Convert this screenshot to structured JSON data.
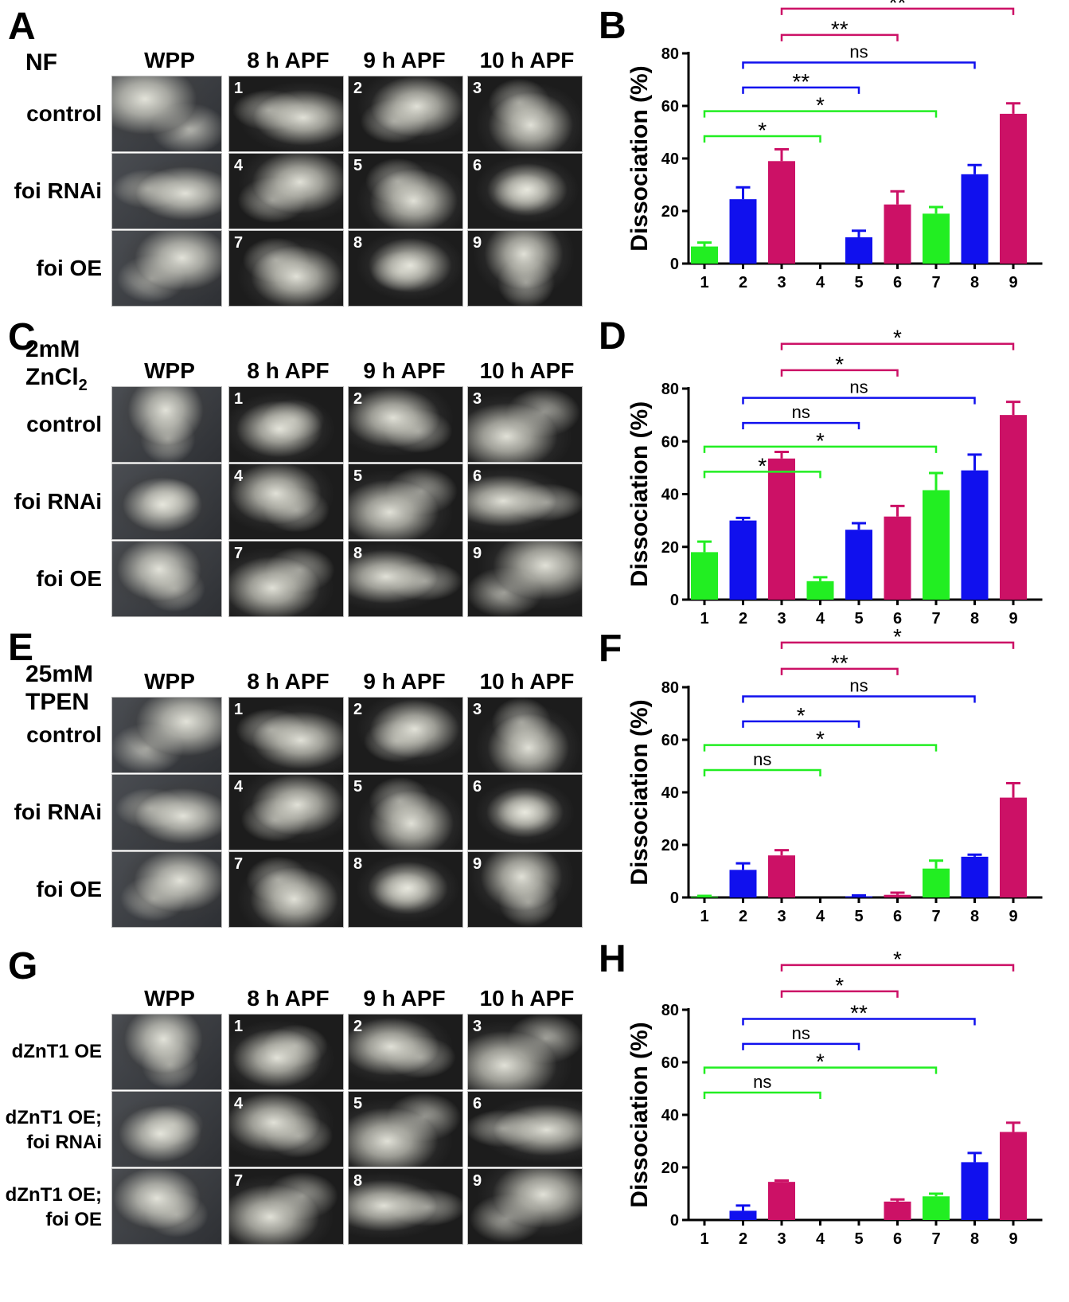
{
  "figure": {
    "column_headers": [
      "WPP",
      "8 h APF",
      "9 h APF",
      "10 h APF"
    ],
    "panels": [
      {
        "letter": "A",
        "condition": [
          "NF"
        ],
        "rows": [
          [
            "control"
          ],
          [
            "foi RNAi"
          ],
          [
            "foi OE"
          ]
        ]
      },
      {
        "letter": "C",
        "condition": [
          "2mM",
          "ZnCl",
          "2"
        ],
        "rows": [
          [
            "control"
          ],
          [
            "foi RNAi"
          ],
          [
            "foi OE"
          ]
        ]
      },
      {
        "letter": "E",
        "condition": [
          "25mM",
          "TPEN"
        ],
        "rows": [
          [
            "control"
          ],
          [
            "foi RNAi"
          ],
          [
            "foi OE"
          ]
        ]
      },
      {
        "letter": "G",
        "condition": [],
        "rows": [
          [
            "dZnT1 OE"
          ],
          [
            "dZnT1 OE;",
            "foi RNAi"
          ],
          [
            "dZnT1 OE;",
            "foi OE"
          ]
        ]
      }
    ],
    "image_numbers": [
      "1",
      "2",
      "3",
      "4",
      "5",
      "6",
      "7",
      "8",
      "9"
    ]
  },
  "colors": {
    "green": "#22ee22",
    "blue": "#1010ee",
    "magenta": "#cc1166",
    "bg_dark": "#1c1c1c"
  },
  "chart_data": [
    {
      "letter": "B",
      "type": "bar",
      "ylabel": "Dissociation (%)",
      "ylim": [
        0,
        80
      ],
      "yticks": [
        "0",
        "20",
        "40",
        "60",
        "80"
      ],
      "categories": [
        "1",
        "2",
        "3",
        "4",
        "5",
        "6",
        "7",
        "8",
        "9"
      ],
      "values": [
        6.5,
        24.5,
        39,
        0,
        10,
        22.5,
        19,
        34,
        57
      ],
      "errors": [
        1.5,
        4.5,
        4.5,
        0,
        2.5,
        5,
        2.5,
        3.5,
        4
      ],
      "bar_colors": [
        "green",
        "blue",
        "magenta",
        "green",
        "blue",
        "magenta",
        "green",
        "blue",
        "magenta"
      ],
      "brackets": [
        {
          "from": 1,
          "to": 4,
          "label": "*",
          "color": "green",
          "level": 0
        },
        {
          "from": 1,
          "to": 7,
          "label": "*",
          "color": "green",
          "level": 1
        },
        {
          "from": 2,
          "to": 5,
          "label": "**",
          "color": "blue",
          "level": 2
        },
        {
          "from": 2,
          "to": 8,
          "label": "ns",
          "color": "blue",
          "level": 3
        },
        {
          "from": 3,
          "to": 6,
          "label": "**",
          "color": "magenta",
          "level": 4
        },
        {
          "from": 3,
          "to": 9,
          "label": "**",
          "color": "magenta",
          "level": 5
        }
      ]
    },
    {
      "letter": "D",
      "type": "bar",
      "ylabel": "Dissociation (%)",
      "ylim": [
        0,
        80
      ],
      "yticks": [
        "0",
        "20",
        "40",
        "60",
        "80"
      ],
      "categories": [
        "1",
        "2",
        "3",
        "4",
        "5",
        "6",
        "7",
        "8",
        "9"
      ],
      "values": [
        18,
        30,
        53.5,
        7,
        26.5,
        31.5,
        41.5,
        49,
        70
      ],
      "errors": [
        4,
        1,
        2.5,
        1.5,
        2.5,
        4,
        6.5,
        6,
        5
      ],
      "bar_colors": [
        "green",
        "blue",
        "magenta",
        "green",
        "blue",
        "magenta",
        "green",
        "blue",
        "magenta"
      ],
      "brackets": [
        {
          "from": 1,
          "to": 4,
          "label": "*",
          "color": "green",
          "level": 0
        },
        {
          "from": 1,
          "to": 7,
          "label": "*",
          "color": "green",
          "level": 1
        },
        {
          "from": 2,
          "to": 5,
          "label": "ns",
          "color": "blue",
          "level": 2
        },
        {
          "from": 2,
          "to": 8,
          "label": "ns",
          "color": "blue",
          "level": 3
        },
        {
          "from": 3,
          "to": 6,
          "label": "*",
          "color": "magenta",
          "level": 4
        },
        {
          "from": 3,
          "to": 9,
          "label": "*",
          "color": "magenta",
          "level": 5
        }
      ]
    },
    {
      "letter": "F",
      "type": "bar",
      "ylabel": "Dissociation (%)",
      "ylim": [
        0,
        80
      ],
      "yticks": [
        "0",
        "20",
        "40",
        "60",
        "80"
      ],
      "categories": [
        "1",
        "2",
        "3",
        "4",
        "5",
        "6",
        "7",
        "8",
        "9"
      ],
      "values": [
        0.3,
        10.5,
        16,
        0,
        0.4,
        1,
        11,
        15.5,
        38
      ],
      "errors": [
        0.3,
        2.5,
        2,
        0,
        0.4,
        0.8,
        3,
        0.8,
        5.5
      ],
      "bar_colors": [
        "green",
        "blue",
        "magenta",
        "green",
        "blue",
        "magenta",
        "green",
        "blue",
        "magenta"
      ],
      "brackets": [
        {
          "from": 1,
          "to": 4,
          "label": "ns",
          "color": "green",
          "level": 0
        },
        {
          "from": 1,
          "to": 7,
          "label": "*",
          "color": "green",
          "level": 1
        },
        {
          "from": 2,
          "to": 5,
          "label": "*",
          "color": "blue",
          "level": 2
        },
        {
          "from": 2,
          "to": 8,
          "label": "ns",
          "color": "blue",
          "level": 3
        },
        {
          "from": 3,
          "to": 6,
          "label": "**",
          "color": "magenta",
          "level": 4
        },
        {
          "from": 3,
          "to": 9,
          "label": "*",
          "color": "magenta",
          "level": 5
        }
      ]
    },
    {
      "letter": "H",
      "type": "bar",
      "ylabel": "Dissociation (%)",
      "ylim": [
        0,
        80
      ],
      "yticks": [
        "0",
        "20",
        "40",
        "60",
        "80"
      ],
      "categories": [
        "1",
        "2",
        "3",
        "4",
        "5",
        "6",
        "7",
        "8",
        "9"
      ],
      "values": [
        0,
        3.5,
        14.5,
        0,
        0,
        7,
        9,
        22,
        33.5
      ],
      "errors": [
        0,
        2,
        0.5,
        0,
        0,
        0.8,
        1,
        3.5,
        3.5
      ],
      "bar_colors": [
        "green",
        "blue",
        "magenta",
        "green",
        "blue",
        "magenta",
        "green",
        "blue",
        "magenta"
      ],
      "brackets": [
        {
          "from": 1,
          "to": 4,
          "label": "ns",
          "color": "green",
          "level": 0
        },
        {
          "from": 1,
          "to": 7,
          "label": "*",
          "color": "green",
          "level": 1
        },
        {
          "from": 2,
          "to": 5,
          "label": "ns",
          "color": "blue",
          "level": 2
        },
        {
          "from": 2,
          "to": 8,
          "label": "**",
          "color": "blue",
          "level": 3
        },
        {
          "from": 3,
          "to": 6,
          "label": "*",
          "color": "magenta",
          "level": 4
        },
        {
          "from": 3,
          "to": 9,
          "label": "*",
          "color": "magenta",
          "level": 5
        }
      ]
    }
  ]
}
